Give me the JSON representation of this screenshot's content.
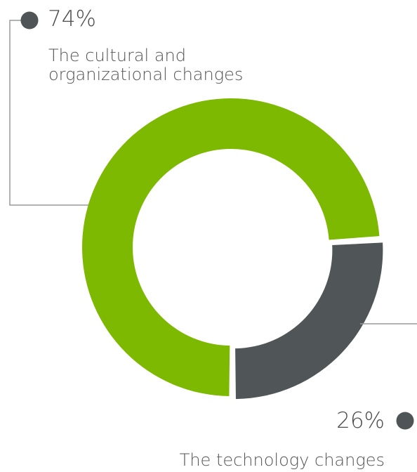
{
  "chart_data": {
    "type": "pie",
    "style": "donut",
    "slices": [
      {
        "value": 74,
        "percent_label": "74%",
        "label_lines": [
          "The cultural and",
          "organizational changes"
        ],
        "color": "#7cb900"
      },
      {
        "value": 26,
        "percent_label": "26%",
        "label_lines": [
          "The technology changes"
        ],
        "color": "#505557"
      }
    ],
    "colors": {
      "leader_line": "#9a9a9a",
      "marker_dot": "#4f5456",
      "text": "#4d4d4d"
    }
  }
}
